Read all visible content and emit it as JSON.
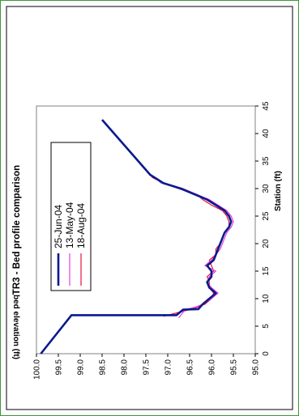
{
  "chart_data": {
    "type": "line",
    "title": "TR3 - Bed profile comparison",
    "xlabel": "Station (ft)",
    "ylabel": "bed elevation (ft)",
    "xlim": [
      0,
      45
    ],
    "ylim": [
      95.0,
      100.0
    ],
    "x_ticks": [
      "0",
      "5",
      "10",
      "15",
      "20",
      "25",
      "30",
      "35",
      "40",
      "45"
    ],
    "y_ticks": [
      "100.0",
      "99.5",
      "99.0",
      "98.5",
      "98.0",
      "97.5",
      "97.0",
      "96.5",
      "96.0",
      "95.5",
      "95.0"
    ],
    "grid": false,
    "legend_position": "upper-left",
    "series": [
      {
        "name": "25-Jun-04",
        "color": "#0a1a8c",
        "points": [
          [
            0,
            99.9
          ],
          [
            7,
            99.2
          ],
          [
            7,
            96.8
          ],
          [
            8,
            96.65
          ],
          [
            8.1,
            96.3
          ],
          [
            9,
            96.2
          ],
          [
            10,
            96.05
          ],
          [
            11,
            95.9
          ],
          [
            12,
            96.05
          ],
          [
            13,
            96.1
          ],
          [
            14,
            96.0
          ],
          [
            15,
            96.0
          ],
          [
            16,
            96.1
          ],
          [
            17,
            95.95
          ],
          [
            18,
            95.9
          ],
          [
            19,
            95.85
          ],
          [
            20,
            95.8
          ],
          [
            21,
            95.75
          ],
          [
            22,
            95.7
          ],
          [
            23,
            95.6
          ],
          [
            24,
            95.55
          ],
          [
            25,
            95.6
          ],
          [
            26,
            95.7
          ],
          [
            27,
            95.9
          ],
          [
            28,
            96.1
          ],
          [
            29,
            96.4
          ],
          [
            30,
            96.7
          ],
          [
            31,
            97.1
          ],
          [
            32,
            97.3
          ],
          [
            32.5,
            97.4
          ],
          [
            42.5,
            98.5
          ]
        ]
      },
      {
        "name": "13-May-04",
        "color": "#e040e0",
        "points": [
          [
            6.5,
            96.75
          ],
          [
            7,
            96.7
          ],
          [
            8,
            96.6
          ],
          [
            8.5,
            96.35
          ],
          [
            9,
            96.2
          ],
          [
            10,
            96.0
          ],
          [
            11,
            95.85
          ],
          [
            12,
            96.0
          ],
          [
            13,
            96.1
          ],
          [
            14,
            96.05
          ],
          [
            15,
            95.9
          ],
          [
            16,
            96.15
          ],
          [
            17,
            96.0
          ],
          [
            18,
            95.9
          ],
          [
            19,
            95.8
          ],
          [
            20,
            95.75
          ],
          [
            21,
            95.7
          ],
          [
            22,
            95.65
          ],
          [
            23,
            95.55
          ],
          [
            24,
            95.5
          ],
          [
            25,
            95.55
          ],
          [
            26,
            95.65
          ],
          [
            27,
            95.85
          ],
          [
            28,
            96.05
          ],
          [
            29,
            96.35
          ],
          [
            30,
            96.65
          ],
          [
            31,
            97.15
          ],
          [
            32,
            97.3
          ],
          [
            32.5,
            97.4
          ]
        ]
      },
      {
        "name": "18-Aug-04",
        "color": "#e8103a",
        "points": [
          [
            6.8,
            97.1
          ],
          [
            7.5,
            96.75
          ],
          [
            8,
            96.5
          ],
          [
            8.5,
            96.3
          ],
          [
            9,
            96.15
          ],
          [
            10,
            96.0
          ],
          [
            11,
            95.95
          ],
          [
            12,
            96.05
          ],
          [
            13,
            96.05
          ],
          [
            14,
            96.1
          ],
          [
            15,
            95.95
          ],
          [
            16,
            96.0
          ],
          [
            17,
            96.05
          ],
          [
            18,
            95.9
          ],
          [
            19,
            95.9
          ],
          [
            20,
            95.8
          ],
          [
            21,
            95.75
          ],
          [
            22,
            95.7
          ],
          [
            23,
            95.6
          ],
          [
            24,
            95.6
          ],
          [
            25,
            95.65
          ],
          [
            26,
            95.75
          ],
          [
            27,
            96.0
          ],
          [
            28,
            96.2
          ],
          [
            29,
            96.35
          ],
          [
            30,
            96.75
          ],
          [
            31,
            97.1
          ],
          [
            32,
            97.35
          ],
          [
            32.5,
            97.4
          ]
        ]
      }
    ]
  }
}
